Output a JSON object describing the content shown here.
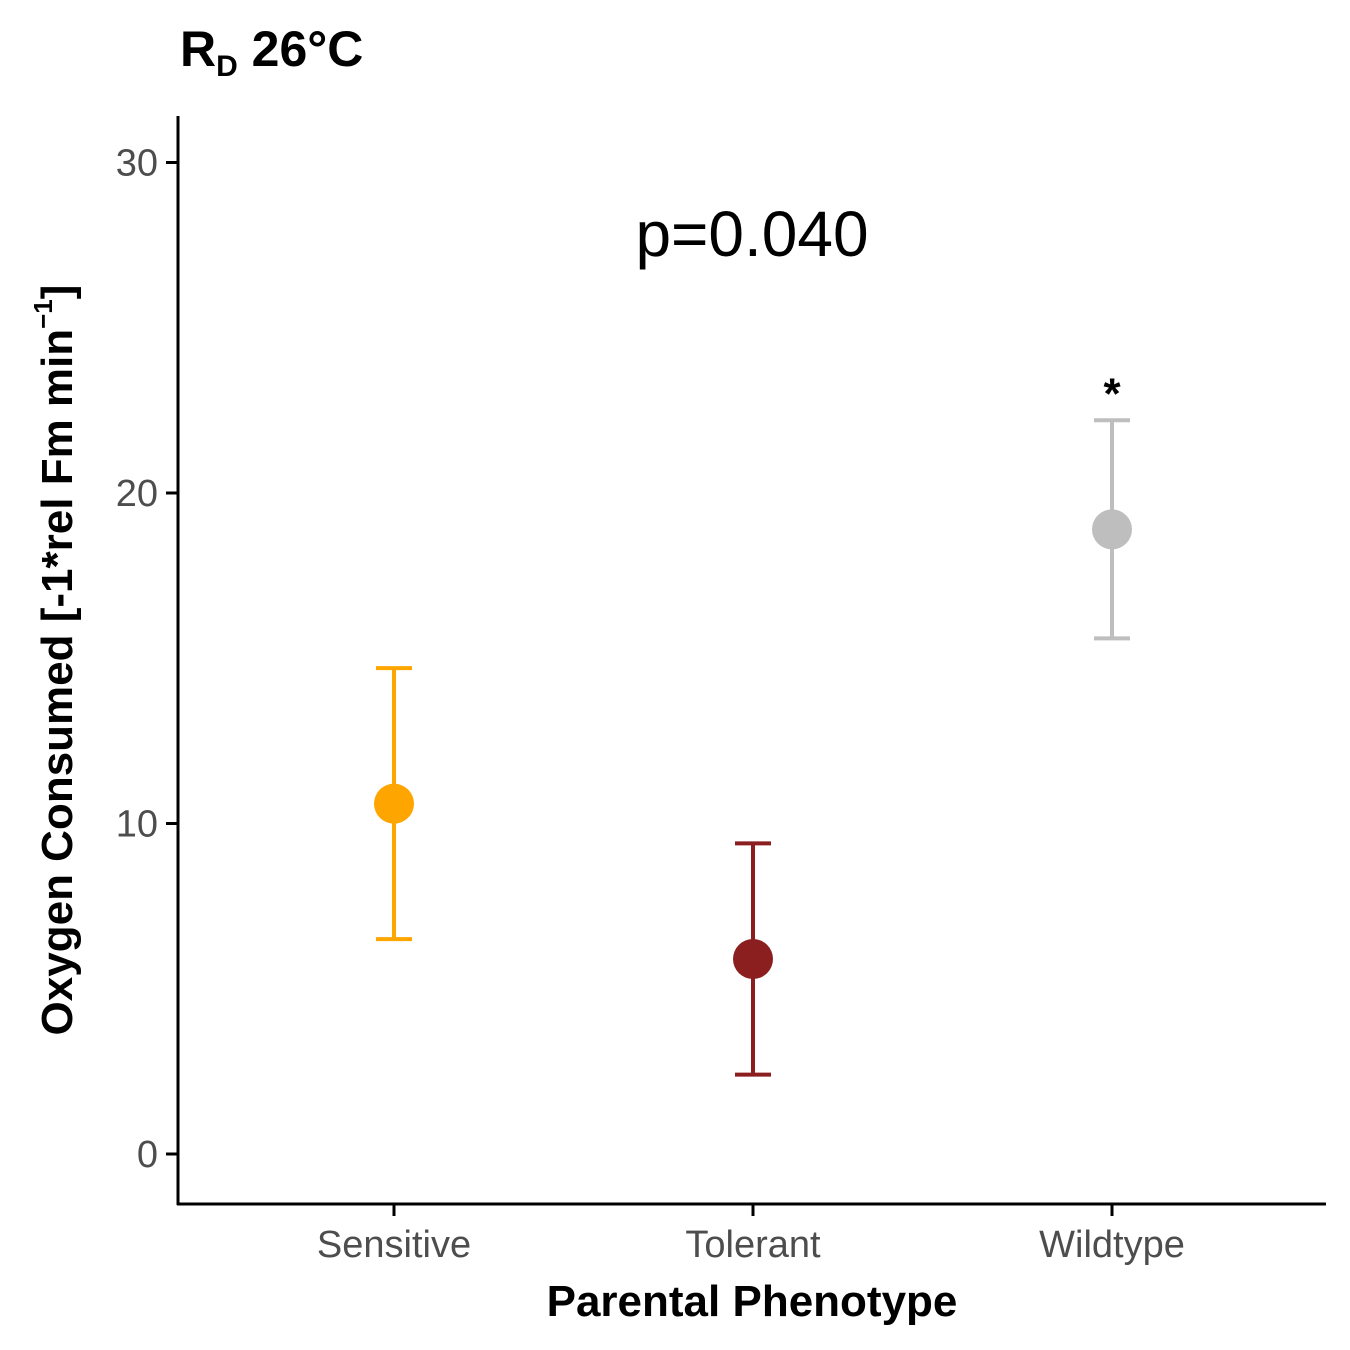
{
  "chart_data": {
    "type": "scatter",
    "title": {
      "main": "R",
      "subscript": "D",
      "rest": " 26°C"
    },
    "xlabel": "Parental Phenotype",
    "ylabel": {
      "main": "Oxygen Consumed [-1*rel Fm min",
      "superscript": "−1",
      "end": "]"
    },
    "categories": [
      "Sensitive",
      "Tolerant",
      "Wildtype"
    ],
    "colors": [
      "#FFA500",
      "#8B1E1E",
      "#BEBEBE"
    ],
    "points": [
      {
        "category": "Sensitive",
        "mean": 10.6,
        "lower": 6.5,
        "upper": 14.7,
        "color": "#FFA500",
        "label": ""
      },
      {
        "category": "Tolerant",
        "mean": 5.9,
        "lower": 2.4,
        "upper": 9.4,
        "color": "#8B1E1E",
        "label": ""
      },
      {
        "category": "Wildtype",
        "mean": 18.9,
        "lower": 15.6,
        "upper": 22.2,
        "color": "#BEBEBE",
        "label": "*"
      }
    ],
    "annotation": "p=0.040",
    "yticks": [
      0,
      10,
      20,
      30
    ],
    "ylim": [
      -1.5,
      31.5
    ],
    "grid": false,
    "legend": "none"
  }
}
